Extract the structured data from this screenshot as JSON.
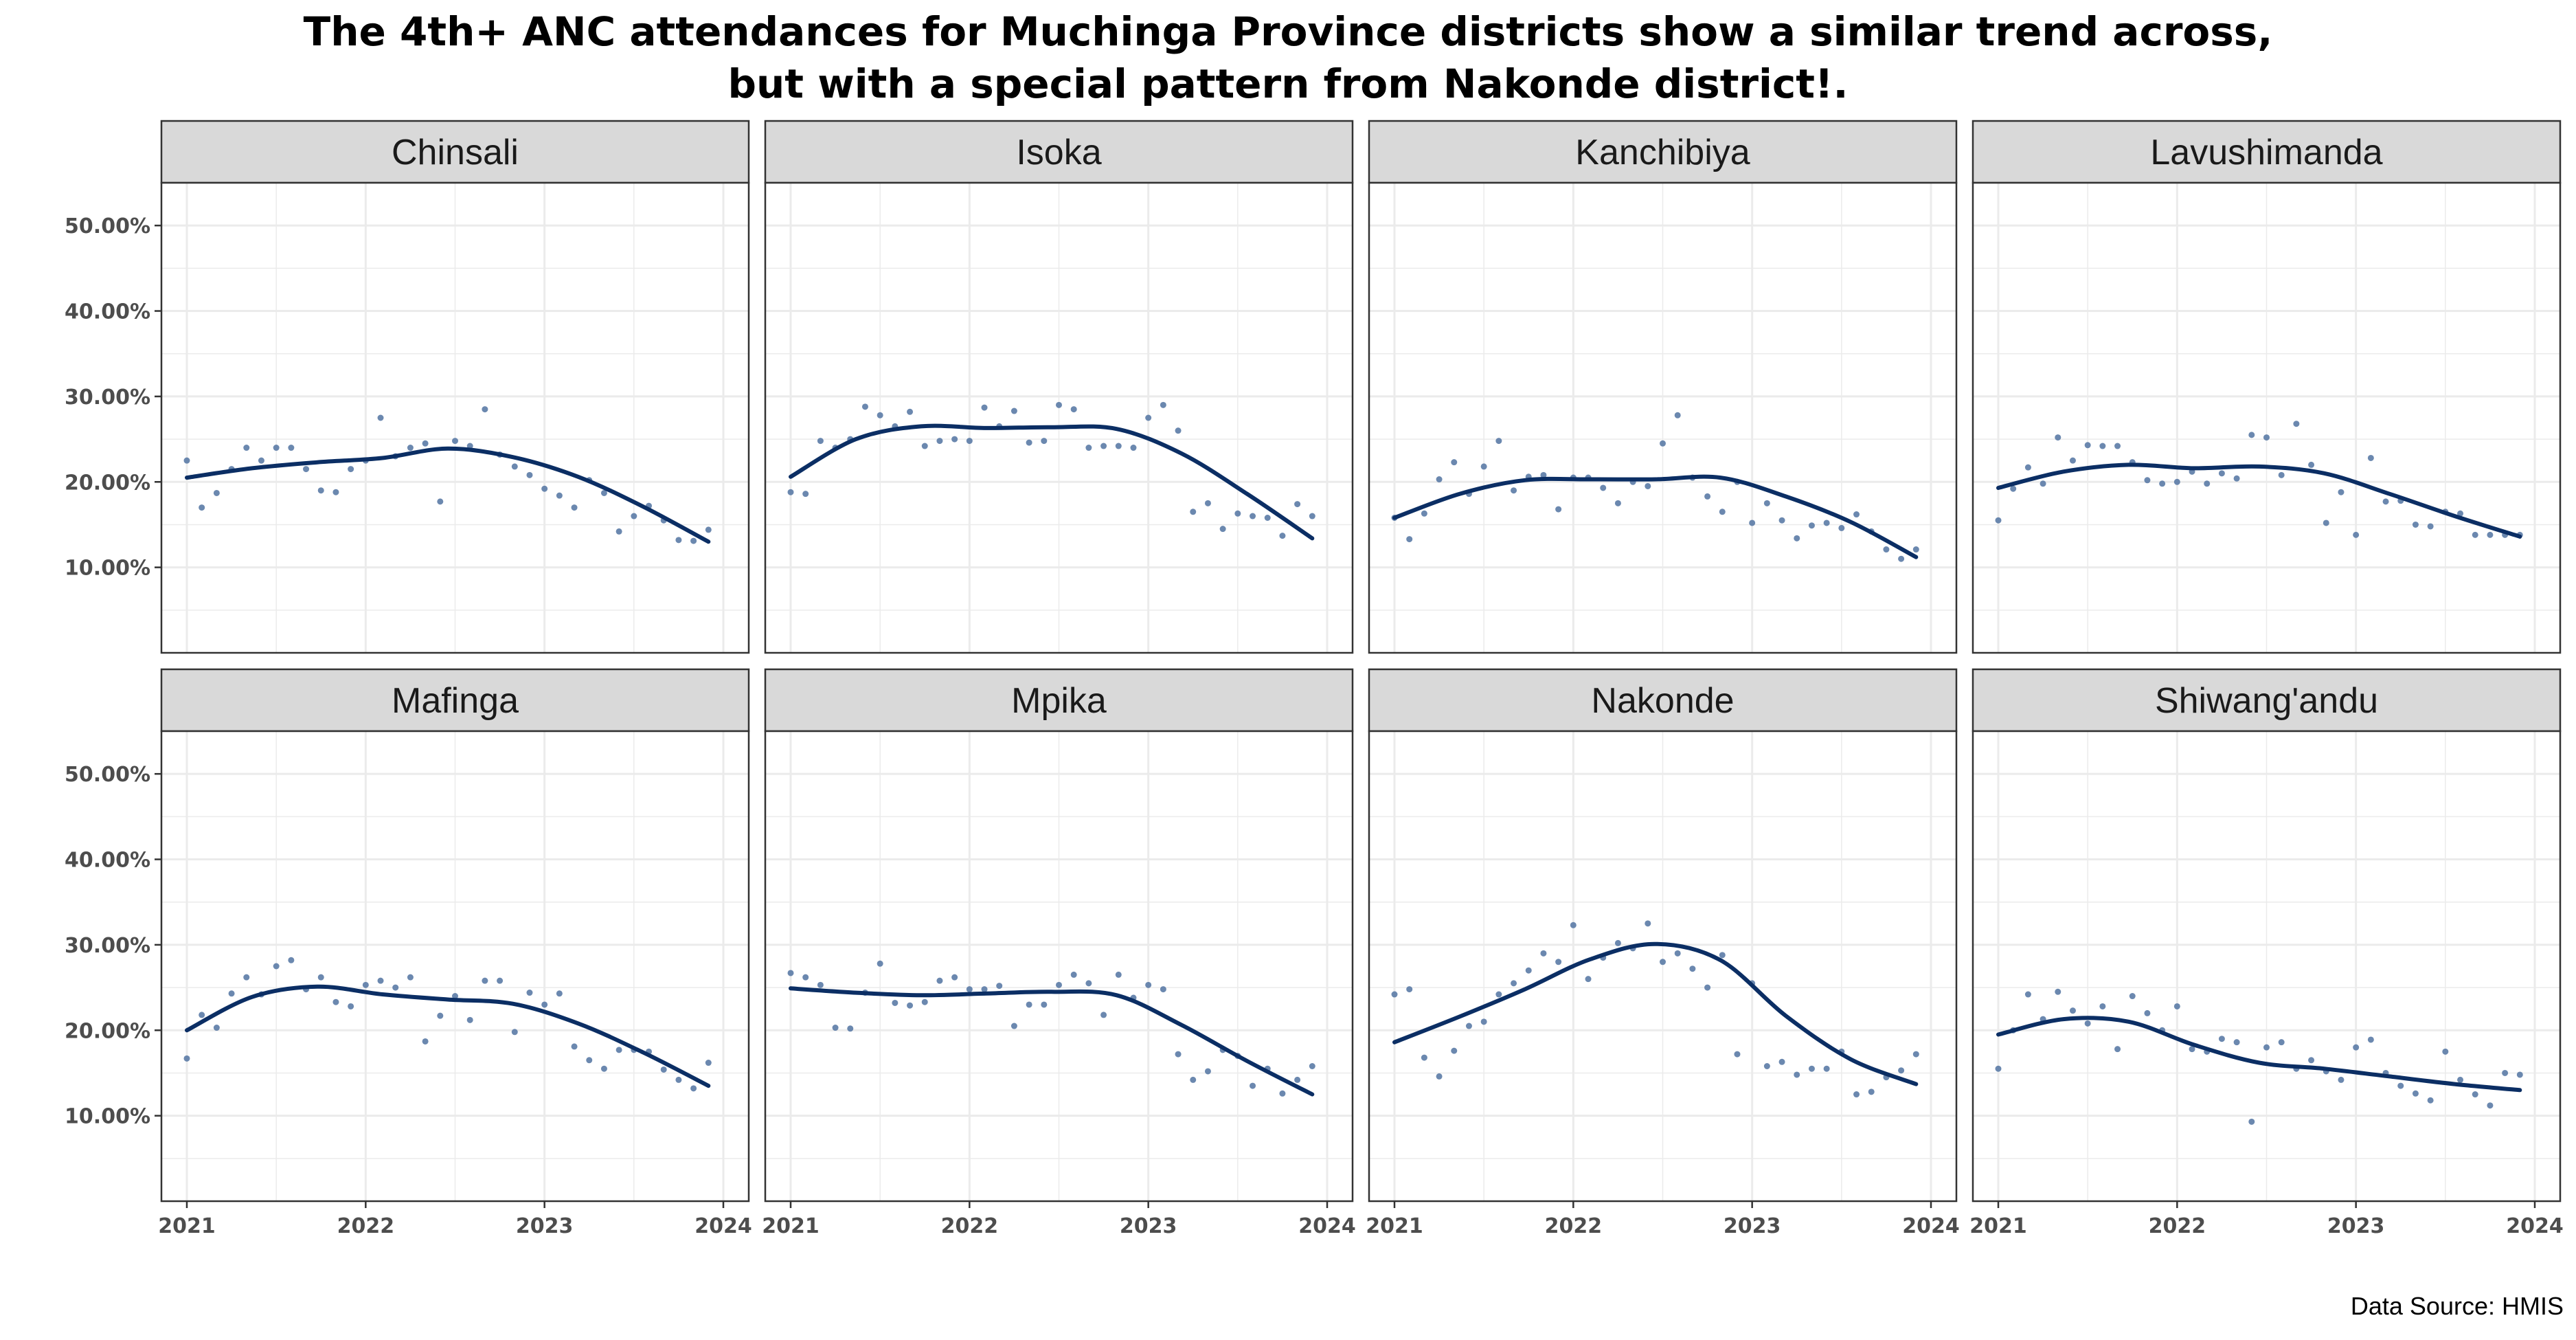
{
  "title_line1": "The 4th+ ANC attendances for Muchinga Province districts show a similar trend across,",
  "title_line2": "but with a special pattern from Nakonde district!.",
  "caption": "Data Source: HMIS",
  "colors": {
    "point": "#5b7ba6",
    "line": "#0b2e64",
    "strip_bg": "#d9d9d9",
    "grid": "#ebebeb",
    "border": "#333333"
  },
  "chart_data": {
    "type": "line",
    "layout": "faceted 2x4",
    "x_ticks": [
      "2021",
      "2022",
      "2023",
      "2024"
    ],
    "x_range": [
      2021,
      2024
    ],
    "y_ticks": [
      "10.00%",
      "20.00%",
      "30.00%",
      "40.00%",
      "50.00%"
    ],
    "y_range": [
      0,
      55
    ],
    "grid": true,
    "panels": [
      {
        "name": "Chinsali",
        "points": [
          22.5,
          17,
          18.7,
          21.5,
          24,
          22.5,
          24,
          24,
          21.5,
          19,
          18.8,
          21.5,
          22.5,
          27.5,
          23,
          24,
          24.5,
          17.7,
          24.8,
          24.2,
          28.5,
          23.2,
          21.8,
          20.8,
          19.2,
          18.4,
          17,
          20.2,
          18.7,
          14.2,
          16,
          17.2,
          15.5,
          13.2,
          13.1,
          14.4
        ],
        "smooth": [
          20.5,
          21.6,
          22.3,
          22.8,
          23.9,
          22.9,
          20.6,
          17.1,
          13
        ]
      },
      {
        "name": "Isoka",
        "points": [
          18.8,
          18.6,
          24.8,
          24,
          25,
          28.8,
          27.8,
          26.5,
          28.2,
          24.2,
          24.8,
          25,
          24.8,
          28.7,
          26.5,
          28.3,
          24.6,
          24.8,
          29,
          28.5,
          24,
          24.2,
          24.2,
          24,
          27.5,
          29,
          26,
          16.5,
          17.5,
          14.5,
          16.3,
          16,
          15.8,
          13.7,
          17.4,
          16
        ],
        "smooth": [
          20.6,
          25,
          26.5,
          26.3,
          26.4,
          26.2,
          23.3,
          18.6,
          13.4
        ]
      },
      {
        "name": "Kanchibiya",
        "points": [
          15.8,
          13.3,
          16.3,
          20.3,
          22.3,
          18.6,
          21.8,
          24.8,
          19,
          20.6,
          20.8,
          16.8,
          20.5,
          20.5,
          19.3,
          17.5,
          20,
          19.5,
          24.5,
          27.8,
          20.5,
          18.3,
          16.5,
          20,
          15.2,
          17.5,
          15.5,
          13.4,
          14.9,
          15.2,
          14.6,
          16.2,
          14.2,
          12.1,
          11,
          12.1
        ],
        "smooth": [
          15.8,
          18.6,
          20.2,
          20.3,
          20.3,
          20.5,
          18.3,
          15.3,
          11.2
        ]
      },
      {
        "name": "Lavushimanda",
        "points": [
          15.5,
          19.2,
          21.7,
          19.8,
          25.2,
          22.5,
          24.3,
          24.2,
          24.2,
          22.3,
          20.2,
          19.8,
          20,
          21.2,
          19.8,
          21,
          20.4,
          25.5,
          25.2,
          20.8,
          26.8,
          22,
          15.2,
          18.8,
          13.8,
          22.8,
          17.7,
          17.8,
          15,
          14.8,
          16.5,
          16.3,
          13.8,
          13.8,
          13.8,
          13.8
        ],
        "smooth": [
          19.3,
          21.2,
          22,
          21.6,
          21.8,
          21,
          18.6,
          16,
          13.6
        ]
      },
      {
        "name": "Mafinga",
        "points": [
          16.7,
          21.8,
          20.3,
          24.3,
          26.2,
          24.2,
          27.5,
          28.2,
          24.8,
          26.2,
          23.3,
          22.8,
          25.3,
          25.8,
          25,
          26.2,
          18.7,
          21.7,
          24,
          21.2,
          25.8,
          25.8,
          19.8,
          24.4,
          23,
          24.3,
          18.1,
          16.5,
          15.5,
          17.7,
          17.7,
          17.5,
          15.4,
          14.2,
          13.2,
          16.2
        ],
        "smooth": [
          20,
          23.9,
          25.1,
          24.2,
          23.6,
          23.1,
          20.8,
          17.4,
          13.5
        ]
      },
      {
        "name": "Mpika",
        "points": [
          26.7,
          26.2,
          25.3,
          20.3,
          20.2,
          24.4,
          27.8,
          23.2,
          22.9,
          23.3,
          25.8,
          26.2,
          24.8,
          24.8,
          25.2,
          20.5,
          23,
          23,
          25.3,
          26.5,
          25.5,
          21.8,
          26.5,
          23.8,
          25.3,
          24.8,
          17.2,
          14.2,
          15.2,
          17.7,
          17,
          13.5,
          15.5,
          12.6,
          14.2,
          15.8
        ],
        "smooth": [
          24.9,
          24.4,
          24.1,
          24.3,
          24.5,
          24.1,
          20.6,
          16.4,
          12.5
        ]
      },
      {
        "name": "Nakonde",
        "points": [
          24.2,
          24.8,
          16.8,
          14.6,
          17.6,
          20.5,
          21,
          24.2,
          25.5,
          27,
          29,
          28,
          32.3,
          26,
          28.5,
          30.2,
          29.6,
          32.5,
          28,
          29,
          27.2,
          25,
          28.8,
          17.2,
          25.5,
          15.8,
          16.3,
          14.8,
          15.5,
          15.5,
          17.5,
          12.5,
          12.8,
          14.5,
          15.3,
          17.2
        ],
        "smooth": [
          18.6,
          21.6,
          24.8,
          28.3,
          30.1,
          28.2,
          21.7,
          16.6,
          13.7
        ]
      },
      {
        "name": "Shiwang'andu",
        "points": [
          15.5,
          20,
          24.2,
          21.3,
          24.5,
          22.3,
          20.8,
          22.8,
          17.8,
          24,
          22,
          20,
          22.8,
          17.8,
          17.5,
          19,
          18.6,
          9.3,
          18,
          18.6,
          15.5,
          16.5,
          15.2,
          14.2,
          18,
          18.9,
          15,
          13.5,
          12.6,
          11.8,
          17.5,
          14.2,
          12.5,
          11.2,
          15,
          14.8
        ],
        "smooth": [
          19.5,
          21.3,
          21,
          18.3,
          16.2,
          15.5,
          14.6,
          13.7,
          13
        ]
      }
    ]
  }
}
